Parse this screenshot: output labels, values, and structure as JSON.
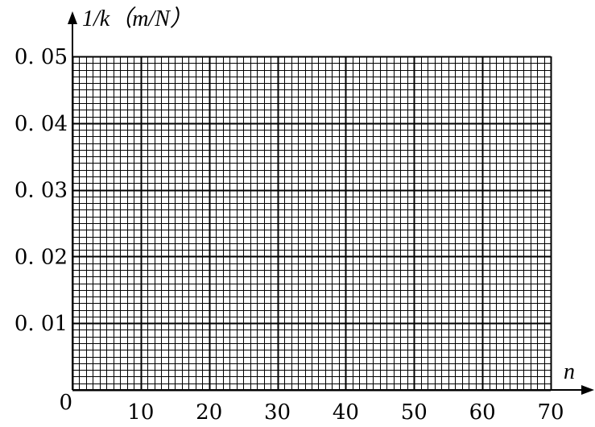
{
  "chart_data": {
    "type": "scatter",
    "title": "",
    "xlabel": "n",
    "ylabel": "1/k（m/N）",
    "xlim": [
      0,
      70
    ],
    "ylim": [
      0,
      0.05
    ],
    "x_ticks": [
      {
        "value": 0,
        "label": "0"
      },
      {
        "value": 10,
        "label": "10"
      },
      {
        "value": 20,
        "label": "20"
      },
      {
        "value": 30,
        "label": "30"
      },
      {
        "value": 40,
        "label": "40"
      },
      {
        "value": 50,
        "label": "50"
      },
      {
        "value": 60,
        "label": "60"
      },
      {
        "value": 70,
        "label": "70"
      }
    ],
    "y_ticks": [
      {
        "value": 0.01,
        "label": "0. 01"
      },
      {
        "value": 0.02,
        "label": "0. 02"
      },
      {
        "value": 0.03,
        "label": "0. 03"
      },
      {
        "value": 0.04,
        "label": "0. 04"
      },
      {
        "value": 0.05,
        "label": "0. 05"
      }
    ],
    "grid": true,
    "x_minor_step": 1,
    "y_minor_step": 0.001,
    "series": []
  }
}
